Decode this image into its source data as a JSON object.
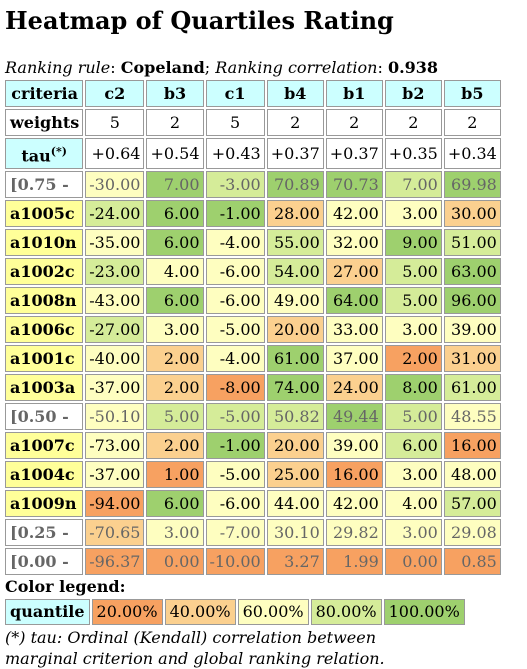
{
  "title": "Heatmap of Quartiles Rating",
  "meta": {
    "rule_label": "Ranking rule",
    "rule_value": "Copeland",
    "corr_label": "Ranking correlation",
    "corr_value": "0.938"
  },
  "header": {
    "criteria_label": "criteria",
    "weights_label": "weights",
    "tau_label": "tau",
    "tau_sup": "(*)",
    "criteria": [
      "c2",
      "b3",
      "c1",
      "b4",
      "b1",
      "b2",
      "b5"
    ],
    "weights": [
      "5",
      "2",
      "5",
      "2",
      "2",
      "2",
      "2"
    ],
    "tau": [
      "+0.64",
      "+0.54",
      "+0.43",
      "+0.37",
      "+0.37",
      "+0.35",
      "+0.34"
    ]
  },
  "rows": [
    {
      "label": "[0.75 -",
      "kind": "quartile",
      "values": [
        "-30.00",
        "7.00",
        "-3.00",
        "70.89",
        "70.73",
        "7.00",
        "69.98"
      ],
      "levels": [
        2,
        4,
        3,
        4,
        4,
        3,
        4
      ]
    },
    {
      "label": "a1005c",
      "kind": "alt",
      "values": [
        "-24.00",
        "6.00",
        "-1.00",
        "28.00",
        "42.00",
        "3.00",
        "30.00"
      ],
      "levels": [
        3,
        4,
        4,
        1,
        2,
        2,
        1
      ]
    },
    {
      "label": "a1010n",
      "kind": "alt",
      "values": [
        "-35.00",
        "6.00",
        "-4.00",
        "55.00",
        "32.00",
        "9.00",
        "51.00"
      ],
      "levels": [
        2,
        4,
        2,
        3,
        2,
        4,
        3
      ]
    },
    {
      "label": "a1002c",
      "kind": "alt",
      "values": [
        "-23.00",
        "4.00",
        "-6.00",
        "54.00",
        "27.00",
        "5.00",
        "63.00"
      ],
      "levels": [
        3,
        2,
        2,
        3,
        1,
        3,
        4
      ]
    },
    {
      "label": "a1008n",
      "kind": "alt",
      "values": [
        "-43.00",
        "6.00",
        "-6.00",
        "49.00",
        "64.00",
        "5.00",
        "96.00"
      ],
      "levels": [
        2,
        4,
        2,
        2,
        4,
        3,
        4
      ]
    },
    {
      "label": "a1006c",
      "kind": "alt",
      "values": [
        "-27.00",
        "3.00",
        "-5.00",
        "20.00",
        "33.00",
        "3.00",
        "39.00"
      ],
      "levels": [
        3,
        2,
        2,
        1,
        2,
        2,
        2
      ]
    },
    {
      "label": "a1001c",
      "kind": "alt",
      "values": [
        "-40.00",
        "2.00",
        "-4.00",
        "61.00",
        "37.00",
        "2.00",
        "31.00"
      ],
      "levels": [
        2,
        1,
        2,
        4,
        2,
        0,
        1
      ]
    },
    {
      "label": "a1003a",
      "kind": "alt",
      "values": [
        "-37.00",
        "2.00",
        "-8.00",
        "74.00",
        "24.00",
        "8.00",
        "61.00"
      ],
      "levels": [
        2,
        1,
        0,
        4,
        1,
        4,
        3
      ]
    },
    {
      "label": "[0.50 -",
      "kind": "quartile",
      "values": [
        "-50.10",
        "5.00",
        "-5.00",
        "50.82",
        "49.44",
        "5.00",
        "48.55"
      ],
      "levels": [
        2,
        3,
        3,
        3,
        4,
        3,
        2
      ]
    },
    {
      "label": "a1007c",
      "kind": "alt",
      "values": [
        "-73.00",
        "2.00",
        "-1.00",
        "20.00",
        "39.00",
        "6.00",
        "16.00"
      ],
      "levels": [
        2,
        1,
        4,
        1,
        2,
        3,
        0
      ]
    },
    {
      "label": "a1004c",
      "kind": "alt",
      "values": [
        "-37.00",
        "1.00",
        "-5.00",
        "25.00",
        "16.00",
        "3.00",
        "48.00"
      ],
      "levels": [
        2,
        0,
        2,
        1,
        0,
        2,
        2
      ]
    },
    {
      "label": "a1009n",
      "kind": "alt",
      "values": [
        "-94.00",
        "6.00",
        "-6.00",
        "44.00",
        "42.00",
        "4.00",
        "57.00"
      ],
      "levels": [
        0,
        4,
        2,
        2,
        2,
        2,
        3
      ]
    },
    {
      "label": "[0.25 -",
      "kind": "quartile",
      "values": [
        "-70.65",
        "3.00",
        "-7.00",
        "30.10",
        "29.82",
        "3.00",
        "29.08"
      ],
      "levels": [
        1,
        2,
        2,
        2,
        2,
        2,
        2
      ]
    },
    {
      "label": "[0.00 -",
      "kind": "quartile",
      "values": [
        "-96.37",
        "0.00",
        "-10.00",
        "3.27",
        "1.99",
        "0.00",
        "0.85"
      ],
      "levels": [
        0,
        0,
        0,
        0,
        0,
        0,
        0
      ]
    }
  ],
  "legend": {
    "title": "Color legend:",
    "label": "quantile",
    "items": [
      "20.00%",
      "40.00%",
      "60.00%",
      "80.00%",
      "100.00%"
    ]
  },
  "footnote": {
    "line1": "(*) tau: Ordinal (Kendall) correlation between",
    "line2": "marginal criterion and global ranking relation."
  },
  "colors": {
    "level0": "#f7a161",
    "level1": "#fbd08f",
    "level2": "#fefec0",
    "level3": "#d5ec99",
    "level4": "#9ed06e",
    "header": "#ccffff",
    "alternative": "#ffff99"
  }
}
